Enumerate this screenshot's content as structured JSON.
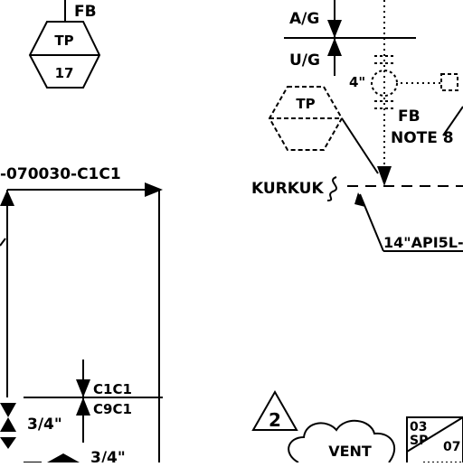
{
  "labels": {
    "fb_top": "FB",
    "tp_left_top": "TP",
    "tp_left_bottom": "17",
    "line_number": "-070030-C1C1",
    "ag": "A/G",
    "ug": "U/G",
    "size_4in": "4\"",
    "fb_right": "FB",
    "note": "NOTE 8",
    "tp_right_top": "TP",
    "kurkuk": "KURKUK",
    "spec": "14\"API5L-",
    "class_upper": "C1C1",
    "class_lower": "C9C1",
    "size_3_4_a": "3/4\"",
    "size_3_4_b": "3/4\"",
    "rev_marker": "2",
    "vent": "VENT",
    "tag_top": "03",
    "tag_mid": "SP",
    "tag_side": "07"
  }
}
